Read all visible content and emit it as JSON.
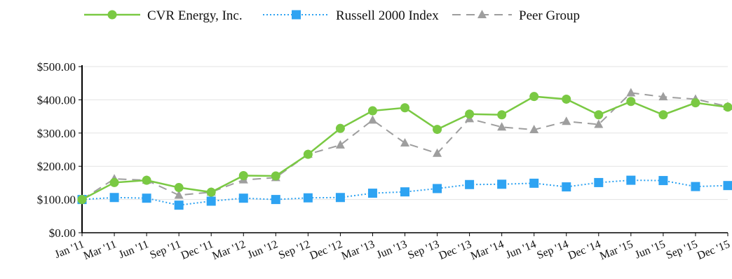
{
  "chart_data": {
    "type": "line",
    "title": "",
    "xlabel": "",
    "ylabel": "",
    "ylim": [
      0,
      500
    ],
    "yticks": [
      "$0.00",
      "$100.00",
      "$200.00",
      "$300.00",
      "$400.00",
      "$500.00"
    ],
    "ytick_values": [
      0,
      100,
      200,
      300,
      400,
      500
    ],
    "grid": true,
    "legend_position": "top",
    "categories": [
      "Jan '11",
      "Mar '11",
      "Jun '11",
      "Sep '11",
      "Dec '11",
      "Mar '12",
      "Jun '12",
      "Sep '12",
      "Dec '12",
      "Mar '13",
      "Jun '13",
      "Sep '13",
      "Dec '13",
      "Mar '14",
      "Jun '14",
      "Sep '14",
      "Dec '14",
      "Mar '15",
      "Jun '15",
      "Sep '15",
      "Dec '15"
    ],
    "series": [
      {
        "name": "CVR Energy, Inc.",
        "color": "#7ac943",
        "line_style": "solid",
        "marker": "circle",
        "values": [
          100,
          151,
          158,
          136,
          122,
          172,
          171,
          236,
          314,
          367,
          376,
          311,
          357,
          355,
          410,
          402,
          355,
          395,
          355,
          391,
          378
        ]
      },
      {
        "name": "Russell 2000 Index",
        "color": "#2ea3f2",
        "line_style": "dotted",
        "marker": "square",
        "values": [
          100,
          106,
          104,
          83,
          95,
          104,
          100,
          105,
          106,
          119,
          123,
          133,
          145,
          146,
          149,
          138,
          151,
          158,
          157,
          139,
          142
        ]
      },
      {
        "name": "Peer Group",
        "color": "#9e9e9e",
        "line_style": "dashed",
        "marker": "triangle",
        "values": [
          100,
          162,
          158,
          113,
          122,
          159,
          166,
          236,
          264,
          339,
          270,
          239,
          343,
          318,
          310,
          335,
          326,
          421,
          409,
          402,
          380
        ]
      }
    ]
  }
}
